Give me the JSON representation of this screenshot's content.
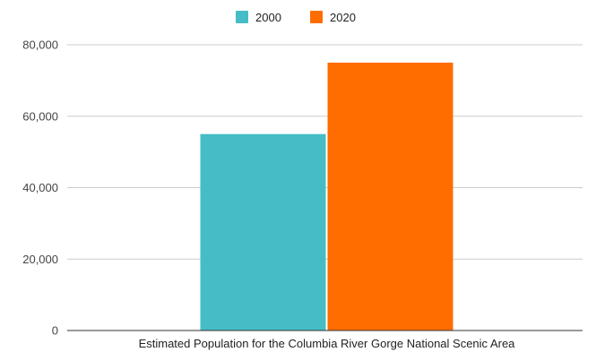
{
  "chart_data": {
    "type": "bar",
    "categories": [
      "Estimated Population for the Columbia River Gorge National Scenic Area"
    ],
    "series": [
      {
        "name": "2000",
        "values": [
          55000
        ],
        "color": "#46bdc6"
      },
      {
        "name": "2020",
        "values": [
          75000
        ],
        "color": "#ff6d01"
      }
    ],
    "ylim": [
      0,
      80000
    ],
    "yticks": [
      0,
      20000,
      40000,
      60000,
      80000
    ],
    "ytick_labels": [
      "0",
      "20,000",
      "40,000",
      "60,000",
      "80,000"
    ],
    "grid": true,
    "legend": "top-center",
    "title": "",
    "xlabel": "",
    "ylabel": ""
  }
}
